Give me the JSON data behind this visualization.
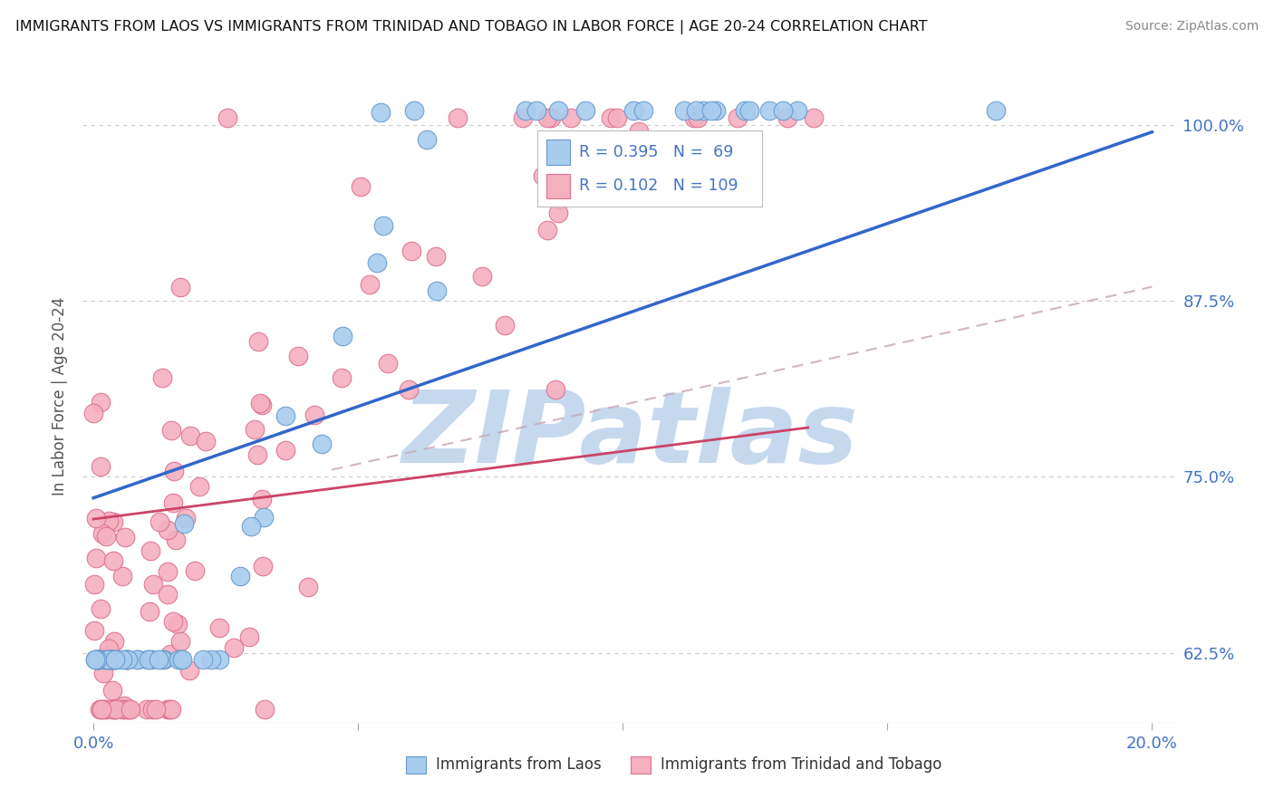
{
  "title": "IMMIGRANTS FROM LAOS VS IMMIGRANTS FROM TRINIDAD AND TOBAGO IN LABOR FORCE | AGE 20-24 CORRELATION CHART",
  "source": "Source: ZipAtlas.com",
  "ylabel": "In Labor Force | Age 20-24",
  "y_ticks": [
    0.625,
    0.75,
    0.875,
    1.0
  ],
  "y_tick_labels": [
    "62.5%",
    "75.0%",
    "87.5%",
    "100.0%"
  ],
  "xlim": [
    -0.002,
    0.205
  ],
  "ylim": [
    0.575,
    1.04
  ],
  "series1_name": "Immigrants from Laos",
  "series1_color": "#a8ccee",
  "series1_edge": "#6699cc",
  "series1_R": 0.395,
  "series1_N": 69,
  "series2_name": "Immigrants from Trinidad and Tobago",
  "series2_color": "#f5b0c0",
  "series2_edge": "#dd7090",
  "series2_R": 0.102,
  "series2_N": 109,
  "blue_line_x": [
    0.0,
    0.2
  ],
  "blue_line_y": [
    0.735,
    0.995
  ],
  "pink_line_x": [
    0.0,
    0.135
  ],
  "pink_line_y": [
    0.72,
    0.785
  ],
  "dash_line_x": [
    0.045,
    0.2
  ],
  "dash_line_y": [
    0.755,
    0.885
  ],
  "text_color": "#4472c4",
  "legend_text_color": "#333333",
  "grid_color": "#cccccc",
  "watermark": "ZIPatlas",
  "watermark_color": "#c5d8ee",
  "background": "#ffffff"
}
